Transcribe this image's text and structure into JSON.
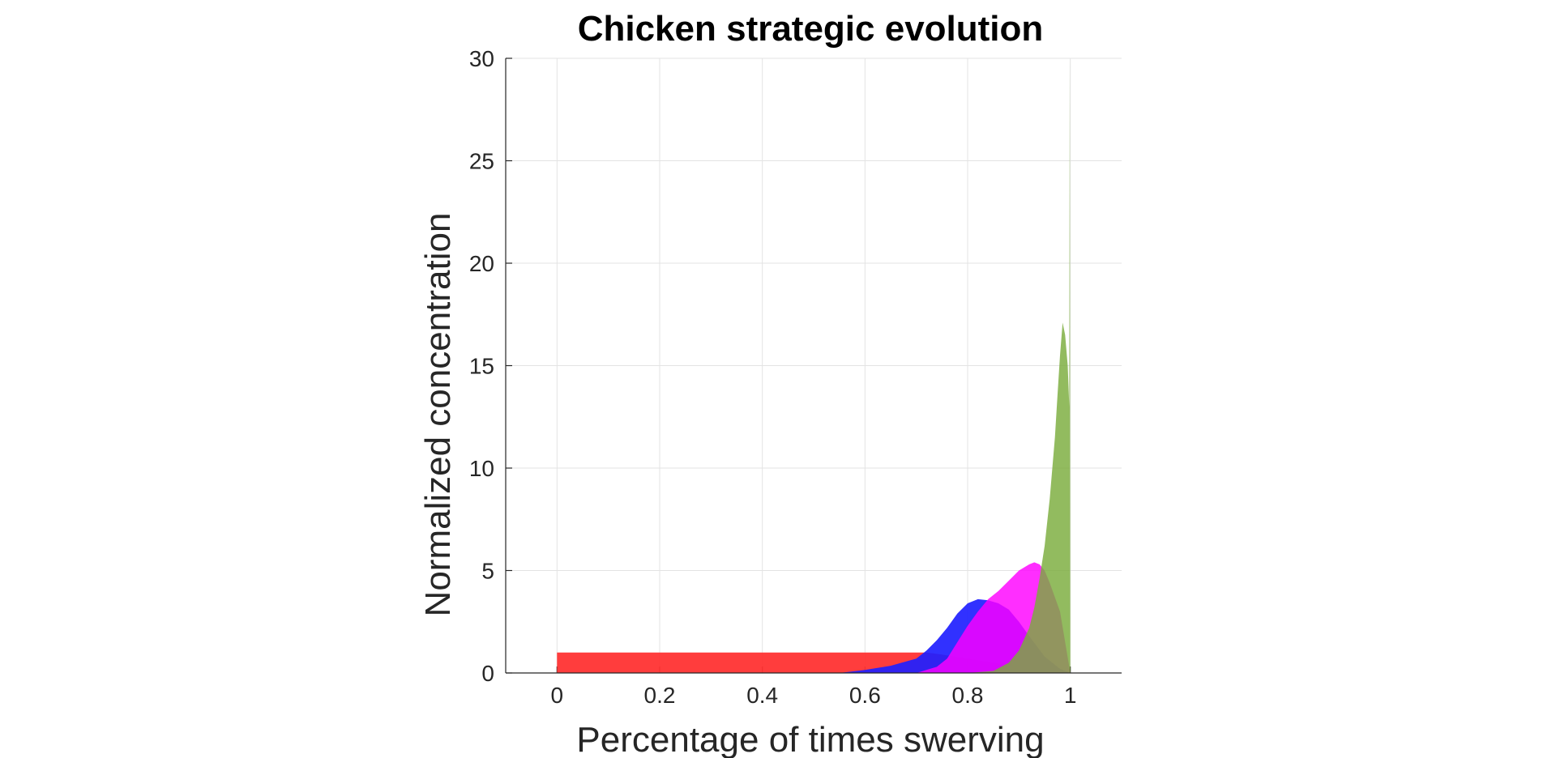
{
  "chart_data": {
    "type": "area",
    "title": "Chicken strategic evolution",
    "xlabel": "Percentage of times swerving",
    "ylabel": "Normalized concentration",
    "xlim": [
      -0.1,
      1.1
    ],
    "ylim": [
      0,
      30
    ],
    "xticks": [
      "0",
      "0.2",
      "0.4",
      "0.6",
      "0.8",
      "1"
    ],
    "yticks": [
      "0",
      "5",
      "10",
      "15",
      "20",
      "25",
      "30"
    ],
    "grid": true,
    "legend": "none",
    "series": [
      {
        "color": "#ff3333",
        "opacity": 0.95,
        "x": [
          0.0,
          0.05,
          0.1,
          0.2,
          0.3,
          0.4,
          0.5,
          0.6,
          0.65,
          0.7,
          0.72,
          0.75,
          0.8,
          0.85,
          0.9,
          0.95,
          1.0
        ],
        "values": [
          1.0,
          1.0,
          1.0,
          1.0,
          1.0,
          1.0,
          1.0,
          1.0,
          1.0,
          1.0,
          1.0,
          0.9,
          0.7,
          0.5,
          0.3,
          0.15,
          0.0
        ]
      },
      {
        "color": "#1f1fff",
        "opacity": 0.92,
        "x": [
          0.55,
          0.6,
          0.65,
          0.7,
          0.72,
          0.74,
          0.76,
          0.78,
          0.8,
          0.82,
          0.84,
          0.86,
          0.88,
          0.9,
          0.92,
          0.95,
          0.98,
          1.0
        ],
        "values": [
          0.0,
          0.15,
          0.35,
          0.7,
          1.1,
          1.6,
          2.2,
          2.9,
          3.4,
          3.6,
          3.55,
          3.4,
          3.1,
          2.5,
          1.8,
          0.8,
          0.2,
          0.0
        ]
      },
      {
        "color": "#ff00ff",
        "opacity": 0.82,
        "x": [
          0.7,
          0.74,
          0.76,
          0.78,
          0.8,
          0.82,
          0.84,
          0.86,
          0.88,
          0.9,
          0.92,
          0.93,
          0.94,
          0.95,
          0.96,
          0.98,
          1.0
        ],
        "values": [
          0.0,
          0.3,
          0.7,
          1.5,
          2.3,
          3.0,
          3.6,
          4.0,
          4.5,
          5.0,
          5.3,
          5.4,
          5.3,
          5.0,
          4.4,
          3.0,
          0.0
        ]
      },
      {
        "color": "#7aac3c",
        "opacity": 0.82,
        "x": [
          0.8,
          0.85,
          0.88,
          0.9,
          0.92,
          0.93,
          0.94,
          0.95,
          0.96,
          0.97,
          0.975,
          0.98,
          0.985,
          0.99,
          0.995,
          0.998,
          0.999,
          1.0
        ],
        "values": [
          0.0,
          0.1,
          0.5,
          1.1,
          2.2,
          3.2,
          4.6,
          6.2,
          8.5,
          11.5,
          13.5,
          15.5,
          17.1,
          16.5,
          15.0,
          13.0,
          30.0,
          0.0
        ]
      }
    ]
  }
}
